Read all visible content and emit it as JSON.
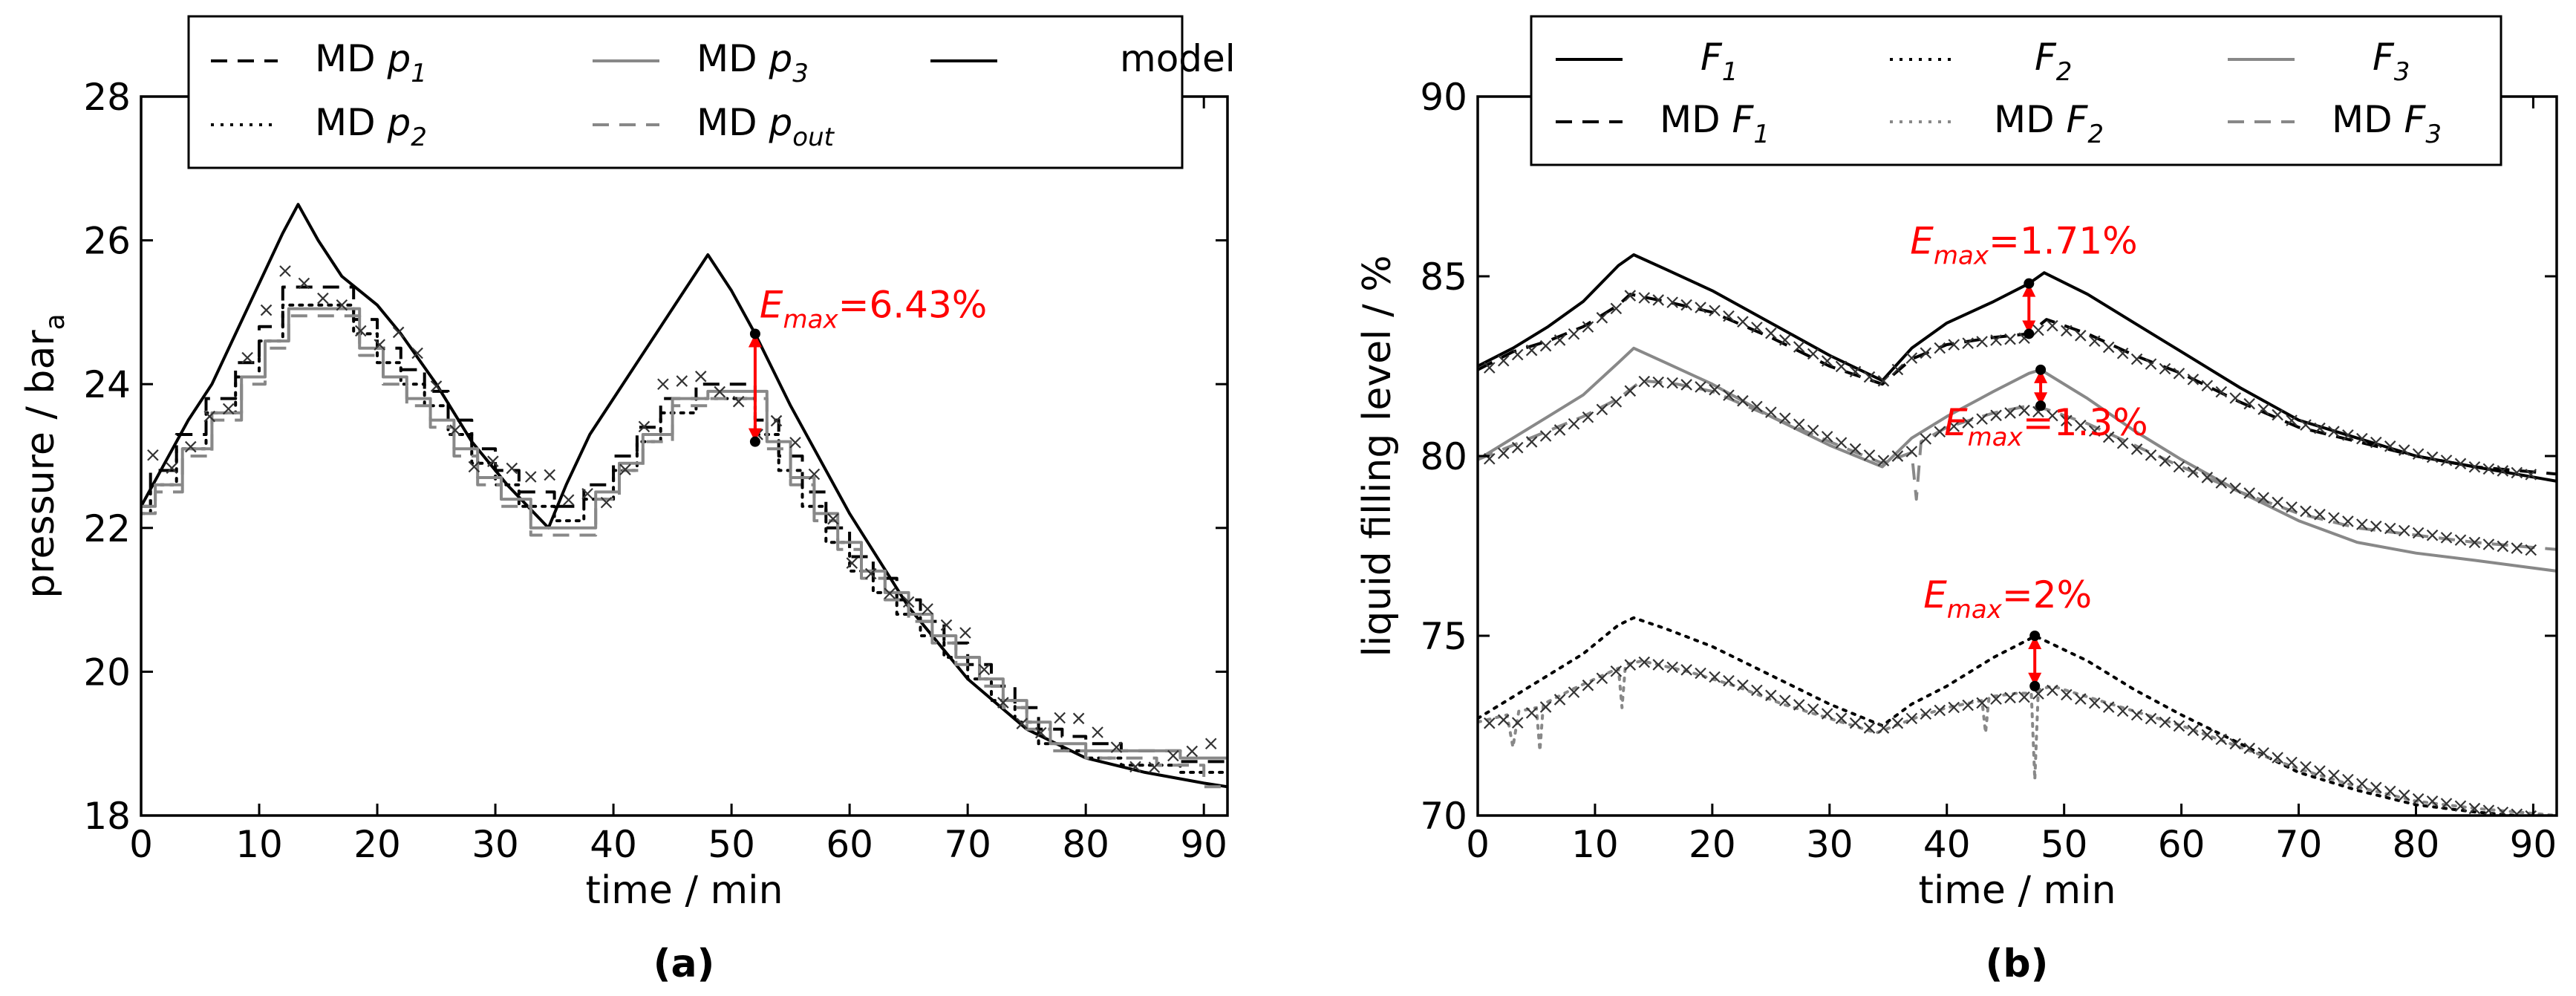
{
  "chart_data": [
    {
      "type": "line",
      "panel": "(a)",
      "xlabel": "time / min",
      "ylabel_main": "pressure / bar",
      "ylabel_sub": "a",
      "xlim": [
        0,
        92
      ],
      "ylim": [
        18,
        28
      ],
      "xticks": [
        0,
        10,
        20,
        30,
        40,
        50,
        60,
        70,
        80,
        90
      ],
      "yticks": [
        18,
        20,
        22,
        24,
        26,
        28
      ],
      "legend": {
        "placement": "top",
        "entries": [
          {
            "key": "md_p1",
            "base": "MD p",
            "sub": "1"
          },
          {
            "key": "md_p2",
            "base": "MD p",
            "sub": "2"
          },
          {
            "key": "md_p3",
            "base": "MD p",
            "sub": "3"
          },
          {
            "key": "md_pout",
            "base": "MD p",
            "sub": "out"
          },
          {
            "key": "model",
            "base": "model",
            "sub": ""
          }
        ]
      },
      "annotation": {
        "base": "E",
        "sub": "max",
        "value": "=6.43%",
        "x": 52,
        "y_top": 24.7,
        "y_bottom": 23.2
      },
      "series": [
        {
          "name": "model",
          "color": "#000000",
          "style": "solid",
          "x": [
            0,
            2,
            4,
            6,
            8,
            10,
            12,
            13.3,
            15,
            17,
            20,
            22,
            25,
            28,
            31,
            34.5,
            36,
            38,
            40,
            42,
            44,
            46,
            48,
            50,
            52,
            55,
            60,
            65,
            70,
            75,
            80,
            85,
            90,
            92
          ],
          "y": [
            22.3,
            22.9,
            23.5,
            24.0,
            24.7,
            25.4,
            26.1,
            26.5,
            26.0,
            25.5,
            25.1,
            24.7,
            24.0,
            23.2,
            22.6,
            22.0,
            22.6,
            23.3,
            23.8,
            24.3,
            24.8,
            25.3,
            25.8,
            25.3,
            24.7,
            23.7,
            22.2,
            20.9,
            19.9,
            19.2,
            18.8,
            18.6,
            18.45,
            18.4
          ]
        },
        {
          "name": "MD p1",
          "color": "#000000",
          "style": "dash",
          "step": true,
          "x": [
            0,
            0.8,
            3,
            5.5,
            8,
            10,
            12,
            18,
            20,
            22,
            24,
            26,
            28,
            30,
            32,
            35,
            37.5,
            40,
            42,
            44,
            47,
            52,
            54,
            56,
            58,
            60,
            62,
            64,
            66,
            68,
            70,
            72,
            74,
            76,
            78,
            80,
            83,
            88,
            92
          ],
          "y": [
            22.3,
            22.8,
            23.3,
            23.8,
            24.3,
            24.8,
            25.35,
            24.9,
            24.5,
            24.2,
            23.9,
            23.5,
            23.1,
            22.8,
            22.5,
            22.3,
            22.6,
            23.0,
            23.4,
            23.8,
            24.0,
            23.5,
            23.0,
            22.5,
            22.0,
            21.6,
            21.3,
            21.0,
            20.7,
            20.4,
            20.1,
            19.8,
            19.5,
            19.2,
            19.1,
            19.0,
            18.9,
            18.75,
            18.75
          ]
        },
        {
          "name": "MD p2",
          "color": "#000000",
          "style": "dot",
          "step": true,
          "x": [
            0,
            0.8,
            3,
            5.5,
            8,
            10,
            12,
            18,
            20,
            22,
            24,
            26,
            28,
            30,
            32,
            35,
            37.5,
            40,
            42,
            44,
            47,
            52,
            54,
            56,
            58,
            60,
            62,
            64,
            66,
            68,
            70,
            72,
            74,
            76,
            78,
            80,
            83,
            88,
            92
          ],
          "y": [
            22.2,
            22.6,
            23.1,
            23.6,
            24.1,
            24.6,
            25.1,
            24.7,
            24.3,
            24.0,
            23.7,
            23.3,
            22.9,
            22.6,
            22.3,
            22.1,
            22.4,
            22.8,
            23.2,
            23.6,
            23.8,
            23.3,
            22.8,
            22.3,
            21.8,
            21.4,
            21.1,
            20.8,
            20.5,
            20.2,
            19.9,
            19.6,
            19.3,
            19.0,
            18.9,
            18.8,
            18.7,
            18.6,
            18.6
          ]
        },
        {
          "name": "MD p3",
          "color": "#888888",
          "style": "solid",
          "step": true,
          "x": [
            0,
            1.2,
            3.5,
            6,
            8.5,
            10.5,
            12.5,
            18.5,
            20.5,
            22.5,
            24.5,
            26.5,
            28.5,
            30.5,
            33,
            36,
            38.5,
            40.5,
            42.5,
            45,
            48,
            53,
            55,
            57,
            59,
            61,
            63,
            65,
            67,
            69,
            71,
            73,
            75,
            77,
            80,
            82,
            86,
            88,
            92
          ],
          "y": [
            22.3,
            22.6,
            23.1,
            23.6,
            24.1,
            24.6,
            25.05,
            24.5,
            24.1,
            23.8,
            23.5,
            23.1,
            22.7,
            22.4,
            22.0,
            22.0,
            22.5,
            22.9,
            23.3,
            23.8,
            23.9,
            23.2,
            22.7,
            22.2,
            21.8,
            21.4,
            21.1,
            20.8,
            20.5,
            20.2,
            19.9,
            19.6,
            19.3,
            19.0,
            18.9,
            18.9,
            18.9,
            18.8,
            18.8
          ]
        },
        {
          "name": "MD pout",
          "color": "#888888",
          "style": "dash",
          "step": true,
          "x": [
            0,
            1.2,
            3.5,
            6,
            8.5,
            10.5,
            12.5,
            18.5,
            20.5,
            22.5,
            24.5,
            26.5,
            28.5,
            30.5,
            33,
            36,
            38.5,
            40.5,
            42.5,
            45,
            48,
            53,
            55,
            57,
            59,
            61,
            63,
            65,
            67,
            69,
            71,
            73,
            75,
            77,
            80,
            82,
            86,
            90,
            92
          ],
          "y": [
            22.2,
            22.5,
            23.0,
            23.5,
            24.0,
            24.5,
            24.95,
            24.4,
            24.0,
            23.7,
            23.4,
            23.0,
            22.6,
            22.3,
            21.9,
            21.9,
            22.4,
            22.8,
            23.2,
            23.7,
            23.8,
            23.1,
            22.6,
            22.1,
            21.7,
            21.3,
            21.0,
            20.7,
            20.4,
            20.1,
            19.8,
            19.5,
            19.2,
            18.9,
            18.8,
            18.8,
            18.7,
            18.4,
            18.4
          ]
        }
      ]
    },
    {
      "type": "line",
      "panel": "(b)",
      "xlabel": "time / min",
      "ylabel_main": "liquid filling level / %",
      "ylabel_sub": "",
      "xlim": [
        0,
        92
      ],
      "ylim": [
        70,
        90
      ],
      "xticks": [
        0,
        10,
        20,
        30,
        40,
        50,
        60,
        70,
        80,
        90
      ],
      "yticks": [
        70,
        75,
        80,
        85,
        90
      ],
      "legend": {
        "placement": "top",
        "entries": [
          {
            "key": "F1",
            "base": "F",
            "sub": "1"
          },
          {
            "key": "MD_F1",
            "base": "MD F",
            "sub": "1"
          },
          {
            "key": "F2",
            "base": "F",
            "sub": "2"
          },
          {
            "key": "MD_F2",
            "base": "MD F",
            "sub": "2"
          },
          {
            "key": "F3",
            "base": "F",
            "sub": "3"
          },
          {
            "key": "MD_F3",
            "base": "MD F",
            "sub": "3"
          }
        ]
      },
      "annotations": [
        {
          "base": "E",
          "sub": "max",
          "value": "=1.71%",
          "x": 47,
          "y_top": 84.8,
          "y_bottom": 83.4
        },
        {
          "base": "E",
          "sub": "max",
          "value": "=1.3%",
          "x": 48,
          "y_top": 82.4,
          "y_bottom": 81.4
        },
        {
          "base": "E",
          "sub": "max",
          "value": "=2%",
          "x": 47.5,
          "y_top": 75.0,
          "y_bottom": 73.6
        }
      ],
      "series": [
        {
          "name": "F1",
          "color": "#000000",
          "style": "solid",
          "x": [
            0,
            3,
            6,
            9,
            12,
            13.3,
            16,
            20,
            25,
            30,
            34.5,
            37,
            40,
            44,
            47,
            48.3,
            52,
            56,
            60,
            65,
            70,
            75,
            80,
            85,
            92
          ],
          "y": [
            82.5,
            83.0,
            83.6,
            84.3,
            85.3,
            85.6,
            85.2,
            84.6,
            83.7,
            82.8,
            82.1,
            83.0,
            83.7,
            84.3,
            84.8,
            85.1,
            84.5,
            83.7,
            82.9,
            81.9,
            81.0,
            80.5,
            80.0,
            79.7,
            79.3
          ]
        },
        {
          "name": "MD F1",
          "color": "#000000",
          "style": "dash",
          "x": [
            0,
            3,
            6,
            9,
            12,
            13,
            16,
            20,
            25,
            30,
            34.5,
            37,
            40,
            44,
            47,
            48.5,
            52,
            56,
            60,
            65,
            70,
            75,
            80,
            85,
            92
          ],
          "y": [
            82.4,
            82.9,
            83.2,
            83.6,
            84.2,
            84.5,
            84.3,
            84.0,
            83.3,
            82.5,
            82.0,
            82.7,
            83.1,
            83.3,
            83.4,
            83.8,
            83.4,
            82.8,
            82.3,
            81.5,
            80.8,
            80.4,
            80.0,
            79.7,
            79.5
          ]
        },
        {
          "name": "F2",
          "color": "#000000",
          "style": "dot",
          "x": [
            0,
            3,
            6,
            9,
            12,
            13.3,
            16,
            20,
            25,
            30,
            34.5,
            37,
            40,
            44,
            47,
            47.5,
            52,
            56,
            60,
            65,
            70,
            75,
            80,
            85,
            92
          ],
          "y": [
            72.7,
            73.3,
            73.9,
            74.5,
            75.3,
            75.5,
            75.2,
            74.7,
            73.9,
            73.1,
            72.5,
            73.1,
            73.6,
            74.4,
            74.9,
            75.0,
            74.3,
            73.5,
            72.8,
            72.0,
            71.2,
            70.7,
            70.3,
            70.1,
            69.9
          ]
        },
        {
          "name": "MD F2",
          "color": "#888888",
          "style": "dot",
          "x": [
            0,
            2.5,
            3,
            3.5,
            5,
            5.3,
            5.6,
            8,
            12,
            12.3,
            12.6,
            14,
            18,
            22,
            26,
            30,
            34,
            38,
            40,
            43,
            43.3,
            43.6,
            46,
            47.2,
            47.5,
            47.8,
            49,
            52,
            56,
            60,
            65,
            70,
            75,
            80,
            85,
            92
          ],
          "y": [
            72.6,
            72.8,
            71.9,
            72.9,
            73.0,
            71.8,
            73.1,
            73.5,
            74.1,
            73.0,
            74.2,
            74.3,
            74.0,
            73.6,
            73.1,
            72.7,
            72.3,
            72.8,
            73.0,
            73.2,
            72.3,
            73.3,
            73.4,
            73.4,
            71.0,
            73.5,
            73.6,
            73.3,
            72.9,
            72.5,
            71.9,
            71.3,
            70.8,
            70.4,
            70.2,
            70.0
          ]
        },
        {
          "name": "F3",
          "color": "#888888",
          "style": "solid",
          "x": [
            0,
            3,
            6,
            9,
            12,
            13.3,
            16,
            20,
            25,
            30,
            34.5,
            37,
            40,
            44,
            47,
            48,
            52,
            56,
            60,
            65,
            70,
            75,
            80,
            85,
            92
          ],
          "y": [
            79.9,
            80.5,
            81.1,
            81.7,
            82.6,
            83.0,
            82.6,
            82.0,
            81.1,
            80.3,
            79.7,
            80.5,
            81.1,
            81.8,
            82.3,
            82.4,
            81.6,
            80.7,
            79.9,
            79.0,
            78.2,
            77.6,
            77.3,
            77.1,
            76.8
          ]
        },
        {
          "name": "MD F3",
          "color": "#888888",
          "style": "dash",
          "x": [
            0,
            3,
            6,
            9,
            12,
            14,
            17,
            20,
            25,
            30,
            34.5,
            37,
            37.4,
            37.8,
            40,
            44,
            47,
            48.5,
            52,
            56,
            60,
            65,
            70,
            75,
            80,
            85,
            92
          ],
          "y": [
            79.9,
            80.3,
            80.7,
            81.1,
            81.6,
            82.1,
            82.0,
            81.8,
            81.1,
            80.4,
            79.8,
            80.1,
            78.8,
            80.4,
            80.8,
            81.2,
            81.4,
            81.3,
            80.9,
            80.3,
            79.7,
            79.0,
            78.4,
            78.0,
            77.8,
            77.6,
            77.4
          ]
        }
      ]
    }
  ]
}
